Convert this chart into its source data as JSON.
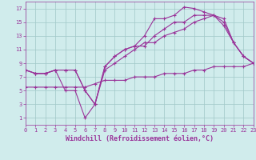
{
  "bg_color": "#d0ecec",
  "grid_color": "#a0c8c8",
  "line_color": "#993399",
  "marker_color": "#993399",
  "line1_x": [
    0,
    1,
    2,
    3,
    4,
    5,
    6,
    7,
    8,
    9,
    10,
    11,
    12,
    13,
    14,
    15,
    16,
    17,
    18,
    19,
    20,
    21,
    22,
    23
  ],
  "line1_y": [
    8,
    7.5,
    7.5,
    8,
    8,
    8,
    5,
    3,
    8.5,
    10,
    11,
    11.5,
    13,
    15.5,
    15.5,
    16,
    17.2,
    17,
    16.5,
    16,
    15.5,
    12,
    10,
    9
  ],
  "line2_x": [
    0,
    1,
    2,
    3,
    4,
    5,
    6,
    7,
    8,
    9,
    10,
    11,
    12,
    13,
    14,
    15,
    16,
    17,
    18,
    19,
    20,
    21,
    22,
    23
  ],
  "line2_y": [
    8,
    7.5,
    7.5,
    8,
    8,
    8,
    5,
    3,
    8.5,
    10,
    11,
    11.5,
    11.5,
    13,
    14,
    15,
    15,
    16,
    16,
    16,
    15,
    12,
    10,
    9
  ],
  "line3_x": [
    0,
    1,
    2,
    3,
    4,
    5,
    6,
    7,
    8,
    9,
    10,
    11,
    12,
    13,
    14,
    15,
    16,
    17,
    18,
    19,
    20,
    21,
    22,
    23
  ],
  "line3_y": [
    8,
    7.5,
    7.5,
    8,
    5,
    5,
    1,
    3,
    8,
    9,
    10,
    11,
    12,
    12,
    13,
    13.5,
    14,
    15,
    15.5,
    16,
    14.5,
    12,
    10,
    9
  ],
  "line4_x": [
    0,
    1,
    2,
    3,
    4,
    5,
    6,
    7,
    8,
    9,
    10,
    11,
    12,
    13,
    14,
    15,
    16,
    17,
    18,
    19,
    20,
    21,
    22,
    23
  ],
  "line4_y": [
    5.5,
    5.5,
    5.5,
    5.5,
    5.5,
    5.5,
    5.5,
    6,
    6.5,
    6.5,
    6.5,
    7,
    7,
    7,
    7.5,
    7.5,
    7.5,
    8,
    8,
    8.5,
    8.5,
    8.5,
    8.5,
    9
  ],
  "xlabel": "Windchill (Refroidissement éolien,°C)",
  "xlim": [
    0,
    23
  ],
  "ylim": [
    0,
    18
  ],
  "xticks": [
    0,
    1,
    2,
    3,
    4,
    5,
    6,
    7,
    8,
    9,
    10,
    11,
    12,
    13,
    14,
    15,
    16,
    17,
    18,
    19,
    20,
    21,
    22,
    23
  ],
  "yticks": [
    1,
    3,
    5,
    7,
    9,
    11,
    13,
    15,
    17
  ],
  "label_fontsize": 6.0,
  "tick_fontsize": 5.0
}
